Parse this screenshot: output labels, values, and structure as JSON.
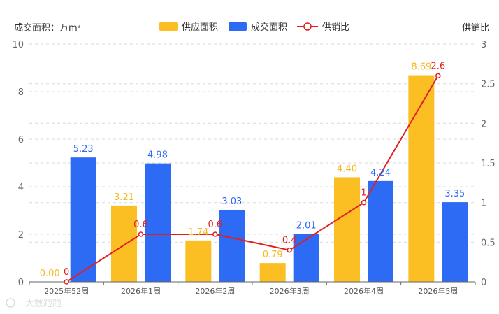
{
  "chart_data": {
    "type": "bar",
    "left_axis_title": "成交面积：万m²",
    "right_axis_title": "供销比",
    "categories": [
      "2025年52周",
      "2026年1周",
      "2026年2周",
      "2026年3周",
      "2026年4周",
      "2026年5周"
    ],
    "series": [
      {
        "name": "供应面积",
        "type": "bar",
        "axis": "left",
        "color": "#FBBF24",
        "label_color": "#F5B91E",
        "values": [
          0.0,
          3.21,
          1.74,
          0.79,
          4.4,
          8.69
        ],
        "labels": [
          "0.00",
          "3.21",
          "1.74",
          "0.79",
          "4.40",
          "8.69"
        ]
      },
      {
        "name": "成交面积",
        "type": "bar",
        "axis": "left",
        "color": "#2E6BF5",
        "label_color": "#2E6BF5",
        "values": [
          5.23,
          4.98,
          3.03,
          2.01,
          4.24,
          3.35
        ],
        "labels": [
          "5.23",
          "4.98",
          "3.03",
          "2.01",
          "4.24",
          "3.35"
        ]
      },
      {
        "name": "供销比",
        "type": "line",
        "axis": "right",
        "color": "#E02020",
        "label_color": "#E02020",
        "values": [
          0,
          0.6,
          0.6,
          0.4,
          1,
          2.6
        ],
        "labels": [
          "0",
          "0.6",
          "0.6",
          "0.4",
          "1",
          "2.6"
        ]
      }
    ],
    "left_axis": {
      "ylim": [
        0,
        10
      ],
      "ticks": [
        0,
        2,
        4,
        6,
        8,
        10
      ],
      "tick_labels": [
        "0",
        "2",
        "4",
        "6",
        "8",
        "10"
      ]
    },
    "right_axis": {
      "ylim": [
        0,
        3
      ],
      "ticks": [
        0,
        0.5,
        1,
        1.5,
        2,
        2.5,
        3
      ],
      "tick_labels": [
        "0",
        "0.5",
        "1",
        "1.5",
        "2",
        "2.5",
        "3"
      ]
    },
    "grid": true,
    "grid_style": "dashed",
    "legend_position": "top-center"
  },
  "watermark": "大数跑跑"
}
